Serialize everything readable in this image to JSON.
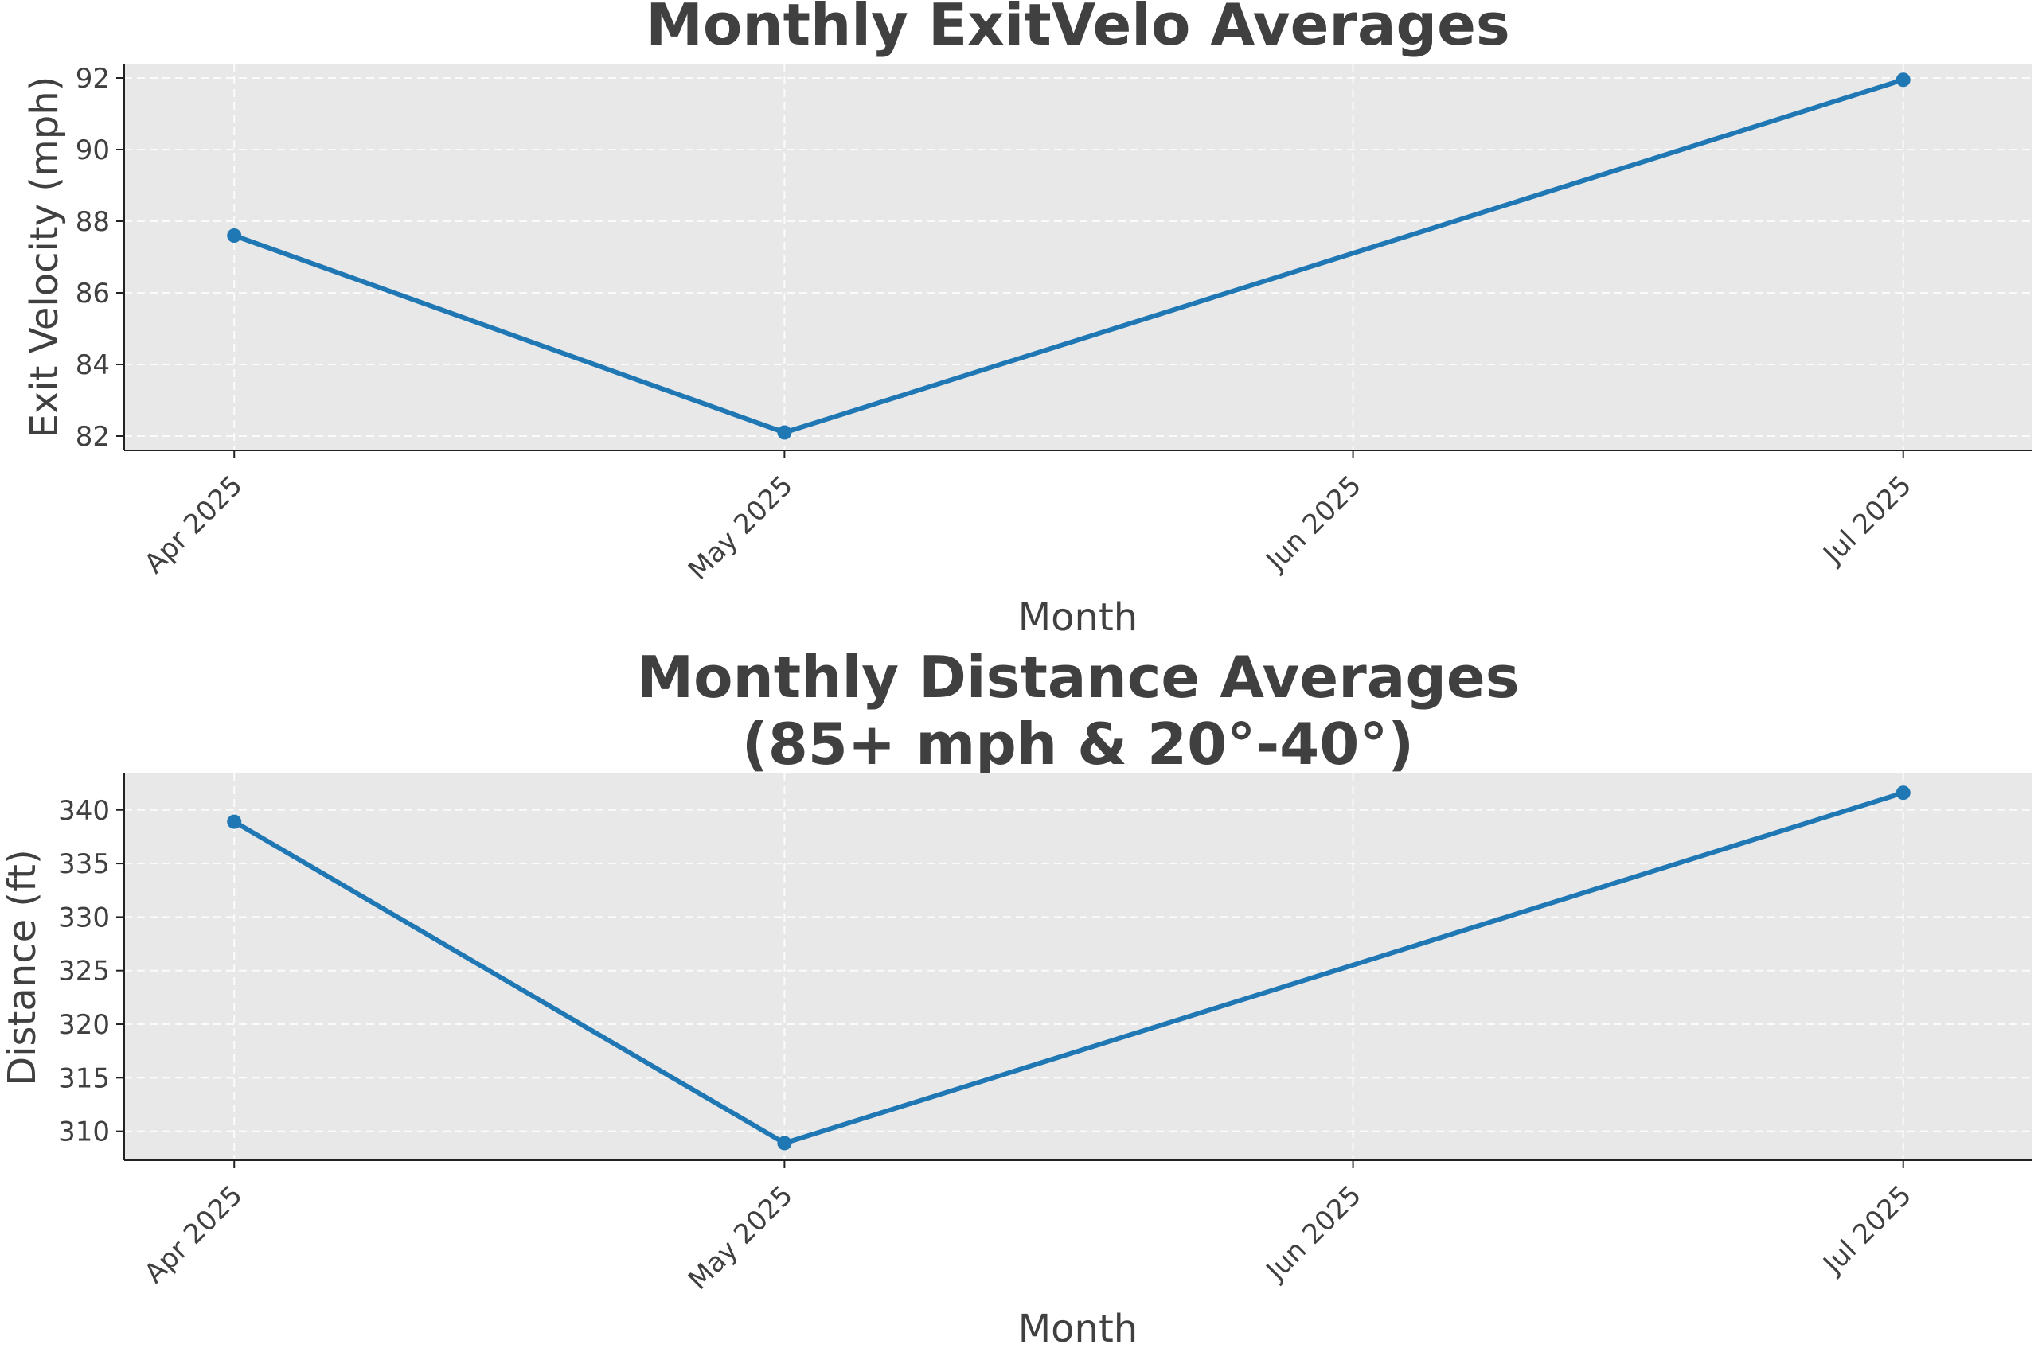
{
  "chart_data": [
    {
      "type": "line",
      "title": "Monthly ExitVelo Averages",
      "xlabel": "Month",
      "ylabel": "Exit Velocity (mph)",
      "x_ticks": [
        "Apr 2025",
        "May 2025",
        "Jun 2025",
        "Jul 2025"
      ],
      "y_ticks": [
        "82",
        "84",
        "86",
        "88",
        "90",
        "92"
      ],
      "ylim": [
        81.6,
        92.4
      ],
      "grid": true,
      "series": [
        {
          "x": [
            "2025-04-01",
            "2025-05-01",
            "2025-07-01"
          ],
          "values": [
            87.6,
            82.1,
            91.95
          ]
        }
      ]
    },
    {
      "type": "line",
      "title": "Monthly Distance Averages\n(85+ mph & 20°-40°)",
      "title_lines": [
        "Monthly Distance Averages",
        "(85+ mph & 20°-40°)"
      ],
      "xlabel": "Month",
      "ylabel": "Distance (ft)",
      "x_ticks": [
        "Apr 2025",
        "May 2025",
        "Jun 2025",
        "Jul 2025"
      ],
      "y_ticks": [
        "310",
        "315",
        "320",
        "325",
        "330",
        "335",
        "340"
      ],
      "ylim": [
        307.3,
        343.4
      ],
      "grid": true,
      "series": [
        {
          "x": [
            "2025-04-01",
            "2025-05-01",
            "2025-07-01"
          ],
          "values": [
            338.9,
            308.9,
            341.6
          ]
        }
      ]
    }
  ],
  "colors": {
    "line": "#1f77b4",
    "plot_background": "#e8e8e8",
    "grid": "#ffffff",
    "text": "#404040",
    "axis": "#222222"
  }
}
